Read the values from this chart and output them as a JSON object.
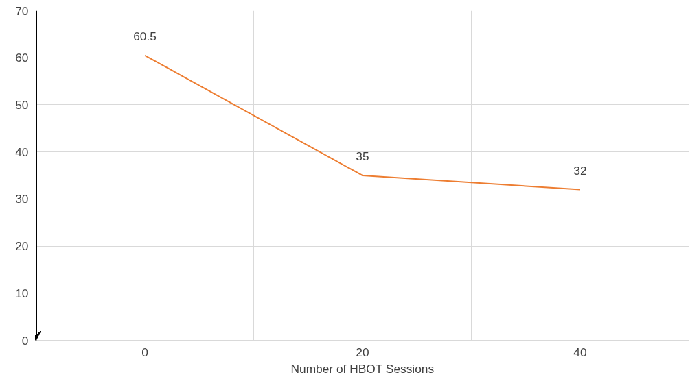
{
  "chart_data": {
    "type": "line",
    "xlabel": "Number of HBOT Sessions",
    "categories": [
      "0",
      "20",
      "40"
    ],
    "series": [
      {
        "color": "#ed7d31",
        "values": [
          60.5,
          35,
          32
        ]
      }
    ],
    "ylim": [
      0,
      70
    ],
    "yticks": [
      0,
      10,
      20,
      30,
      40,
      50,
      60,
      70
    ],
    "grid": true,
    "data_labels": true,
    "marker": "none",
    "line_style": "solid"
  }
}
